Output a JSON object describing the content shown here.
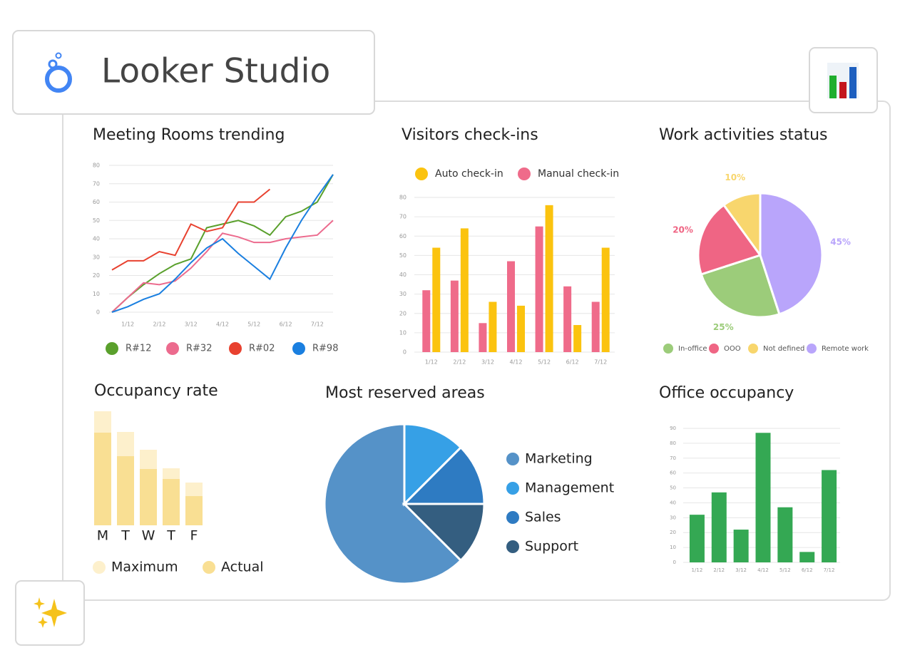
{
  "header": {
    "title": "Looker Studio"
  },
  "chart_data": [
    {
      "type": "line",
      "title": "Meeting Rooms trending",
      "x": [
        0,
        1,
        2,
        3,
        4,
        5,
        6,
        7,
        8,
        9,
        10,
        11,
        12,
        13,
        14
      ],
      "xlim": [
        0,
        14
      ],
      "xticks": [
        {
          "value": 1,
          "label": "1/12"
        },
        {
          "value": 3,
          "label": "2/12"
        },
        {
          "value": 5,
          "label": "3/12"
        },
        {
          "value": 7,
          "label": "4/12"
        },
        {
          "value": 9,
          "label": "5/12"
        },
        {
          "value": 11,
          "label": "6/12"
        },
        {
          "value": 13,
          "label": "7/12"
        }
      ],
      "ylim": [
        0,
        80
      ],
      "yticks": [
        0,
        10,
        20,
        30,
        40,
        50,
        60,
        70,
        80
      ],
      "grid": true,
      "series": [
        {
          "name": "R#12",
          "color": "#5aa02c",
          "values": [
            0,
            8,
            15,
            21,
            26,
            29,
            46,
            48,
            50,
            47,
            42,
            52,
            55,
            60,
            75
          ]
        },
        {
          "name": "R#32",
          "color": "#ec6b8e",
          "values": [
            0,
            8,
            16,
            15,
            17,
            24,
            33,
            43,
            41,
            38,
            38,
            40,
            41,
            42,
            50
          ]
        },
        {
          "name": "R#02",
          "color": "#e8412f",
          "values": [
            23,
            28,
            28,
            33,
            31,
            48,
            44,
            46,
            60,
            60,
            67,
            null,
            null,
            null,
            null
          ]
        },
        {
          "name": "R#98",
          "color": "#1a7fe0",
          "values": [
            0,
            3,
            7,
            10,
            18,
            27,
            35,
            40,
            32,
            25,
            18,
            35,
            50,
            63,
            75
          ]
        }
      ]
    },
    {
      "type": "bar",
      "barmode": "group",
      "title": "Visitors check-ins",
      "categories": [
        "1/12",
        "2/12",
        "3/12",
        "4/12",
        "5/12",
        "6/12",
        "7/12"
      ],
      "ylim": [
        0,
        80
      ],
      "yticks": [
        0,
        10,
        20,
        30,
        40,
        50,
        60,
        70,
        80
      ],
      "grid": true,
      "series": [
        {
          "name": "Auto check-in",
          "color": "#fbc30f",
          "values": [
            54,
            64,
            26,
            24,
            76,
            14,
            54
          ]
        },
        {
          "name": "Manual check-in",
          "color": "#ef6b8a",
          "values": [
            32,
            37,
            15,
            47,
            65,
            34,
            26
          ]
        }
      ]
    },
    {
      "type": "pie",
      "title": "Work activities status",
      "categories": [
        "In-office",
        "OOO",
        "Not defined",
        "Remote work"
      ],
      "values": [
        25,
        20,
        10,
        45
      ],
      "value_labels": [
        "25%",
        "20%",
        "10%",
        "45%"
      ],
      "colors": [
        "#9ccc7a",
        "#ef6584",
        "#f8d66d",
        "#b9a5fb"
      ]
    },
    {
      "type": "bar",
      "barmode": "overlay",
      "title": "Occupancy rate",
      "categories": [
        "M",
        "T",
        "W",
        "T",
        "F"
      ],
      "ylim": [
        0,
        170
      ],
      "grid": false,
      "series": [
        {
          "name": "Maximum",
          "color": "#fdf0cc",
          "values": [
            160,
            131,
            106,
            80,
            60
          ]
        },
        {
          "name": "Actual",
          "color": "#f9df93",
          "values": [
            130,
            97,
            79,
            65,
            41
          ]
        }
      ]
    },
    {
      "type": "pie",
      "title": "Most reserved areas",
      "categories": [
        "Marketing",
        "Management",
        "Sales",
        "Support"
      ],
      "values": [
        62.5,
        12.5,
        12.5,
        12.5
      ],
      "colors": [
        "#5592c8",
        "#36a0e6",
        "#2e7bc2",
        "#345e80"
      ]
    },
    {
      "type": "bar",
      "title": "Office occupancy",
      "categories": [
        "1/12",
        "2/12",
        "3/12",
        "4/12",
        "5/12",
        "6/12",
        "7/12"
      ],
      "values": [
        32,
        47,
        22,
        87,
        37,
        7,
        62
      ],
      "color": "#34a853",
      "ylim": [
        0,
        90
      ],
      "yticks": [
        0,
        10,
        20,
        30,
        40,
        50,
        60,
        70,
        80,
        90
      ],
      "grid": true
    }
  ]
}
